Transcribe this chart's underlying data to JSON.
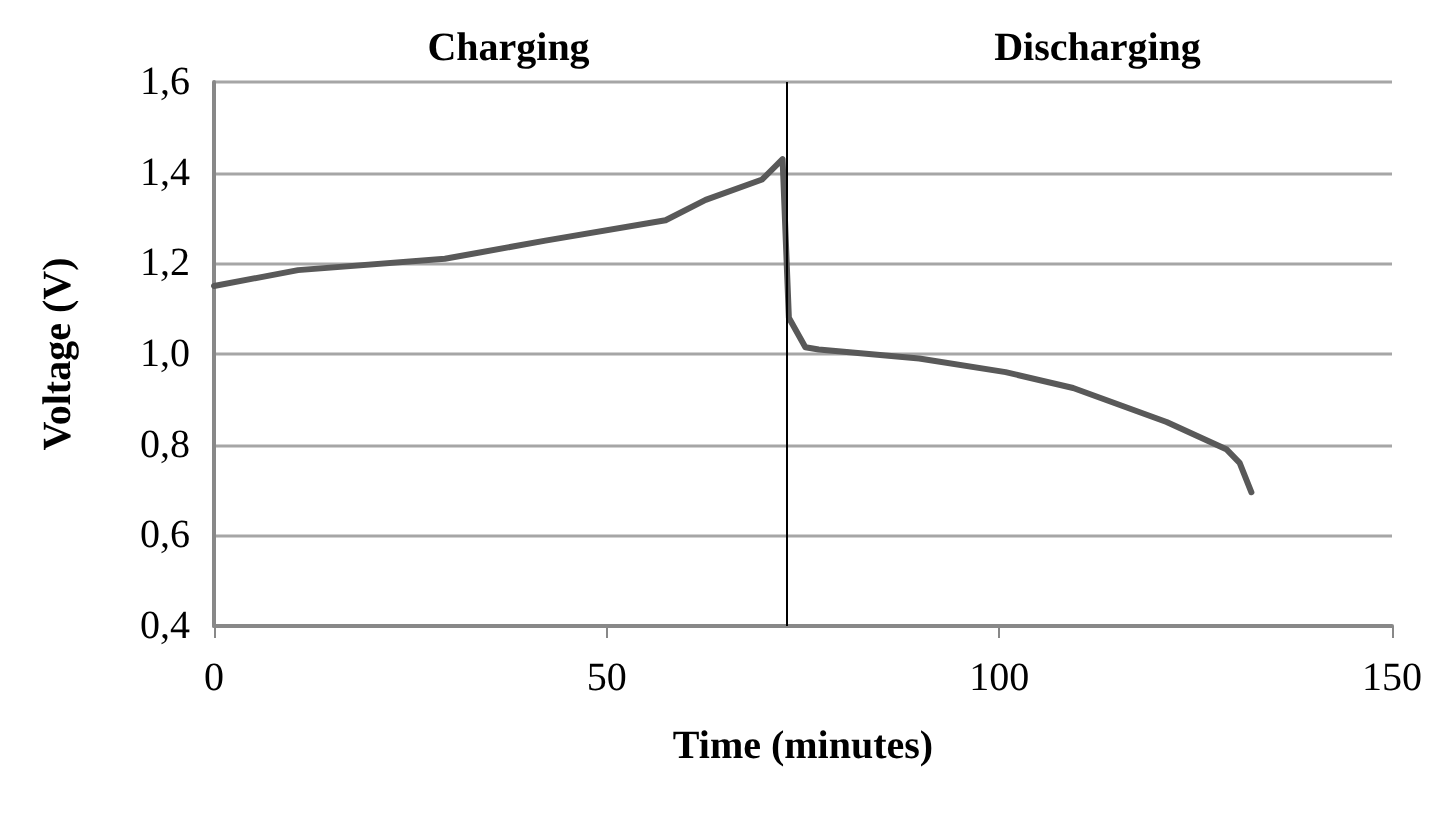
{
  "chart_data": {
    "type": "line",
    "xlabel": "Time (minutes)",
    "ylabel": "Voltage (V)",
    "annotations": [
      "Charging",
      "Discharging"
    ],
    "series": [
      {
        "color": "#595959",
        "x": [
          0,
          10.7,
          29.4,
          42.2,
          57.5,
          62.6,
          69.8,
          72.4,
          73.2,
          75.3,
          77,
          89.8,
          100.8,
          109.4,
          121.3,
          128.9,
          130.6,
          132.1
        ],
        "values": [
          1.15,
          1.185,
          1.21,
          1.25,
          1.295,
          1.34,
          1.385,
          1.43,
          1.08,
          1.015,
          1.01,
          0.99,
          0.96,
          0.925,
          0.85,
          0.79,
          0.76,
          0.695
        ]
      }
    ],
    "xlim": [
      0,
      150
    ],
    "xticks": [
      0,
      50,
      100,
      150
    ],
    "ylim": [
      0.4,
      1.6
    ],
    "yticks": [
      {
        "value": 0.4,
        "label": "0,4"
      },
      {
        "value": 0.6,
        "label": "0,6"
      },
      {
        "value": 0.8,
        "label": "0,8"
      },
      {
        "value": 1.0,
        "label": "1,0"
      },
      {
        "value": 1.2,
        "label": "1,2"
      },
      {
        "value": 1.4,
        "label": "1,4"
      },
      {
        "value": 1.6,
        "label": "1,6"
      }
    ],
    "ref_lines": [
      {
        "axis": "x",
        "value": 73,
        "color": "#000000"
      }
    ],
    "grid": "y",
    "marker": "none",
    "line_style": "solid"
  }
}
